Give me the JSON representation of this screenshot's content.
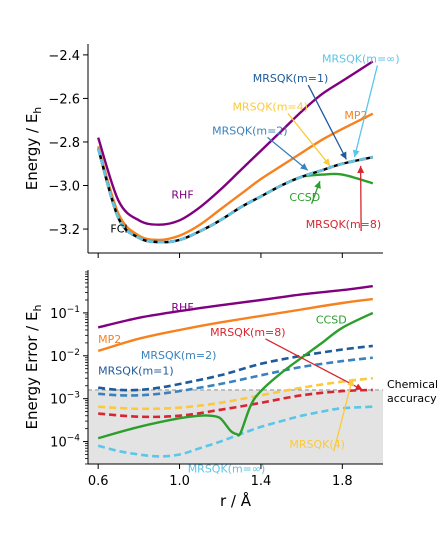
{
  "chart_data": [
    {
      "type": "line",
      "ylabel": "Energy / E_h",
      "ylabel_parts": {
        "main": "Energy / E",
        "sub": "h"
      },
      "xlim": [
        0.55,
        2.0
      ],
      "ylim": [
        -3.31,
        -2.35
      ],
      "xticks": [
        0.6,
        1.0,
        1.4,
        1.8
      ],
      "xtick_labels": [
        "",
        "",
        "",
        ""
      ],
      "yticks": [
        -2.4,
        -2.6,
        -2.8,
        -3.0,
        -3.2
      ],
      "ytick_labels": [
        "−2.4",
        "−2.6",
        "−2.8",
        "−3.0",
        "−3.2"
      ],
      "series": [
        {
          "name": "RHF",
          "color": "#800080",
          "style": "solid",
          "x": [
            0.6,
            0.7,
            0.8,
            0.9,
            1.0,
            1.1,
            1.2,
            1.3,
            1.4,
            1.5,
            1.6,
            1.7,
            1.8,
            1.95
          ],
          "y": [
            -2.78,
            -3.07,
            -3.16,
            -3.18,
            -3.16,
            -3.1,
            -3.02,
            -2.93,
            -2.84,
            -2.75,
            -2.66,
            -2.58,
            -2.52,
            -2.43
          ]
        },
        {
          "name": "MP2",
          "color": "#f7811f",
          "style": "solid",
          "x": [
            0.6,
            0.7,
            0.8,
            0.9,
            1.0,
            1.1,
            1.2,
            1.3,
            1.4,
            1.5,
            1.6,
            1.7,
            1.8,
            1.95
          ],
          "y": [
            -2.82,
            -3.13,
            -3.23,
            -3.25,
            -3.23,
            -3.18,
            -3.11,
            -3.04,
            -2.97,
            -2.91,
            -2.85,
            -2.79,
            -2.74,
            -2.67
          ]
        },
        {
          "name": "CCSD",
          "color": "#2c9e2c",
          "style": "solid",
          "x": [
            0.6,
            0.7,
            0.8,
            0.9,
            1.0,
            1.1,
            1.2,
            1.3,
            1.4,
            1.5,
            1.6,
            1.7,
            1.8,
            1.95
          ],
          "y": [
            -2.83,
            -3.15,
            -3.24,
            -3.26,
            -3.25,
            -3.21,
            -3.16,
            -3.1,
            -3.05,
            -3.0,
            -2.96,
            -2.95,
            -2.95,
            -2.99
          ]
        },
        {
          "name": "FCI",
          "color": "#000000",
          "style": "solid",
          "x": [
            0.6,
            0.7,
            0.8,
            0.9,
            1.0,
            1.1,
            1.2,
            1.3,
            1.4,
            1.5,
            1.6,
            1.7,
            1.8,
            1.95
          ],
          "y": [
            -2.83,
            -3.15,
            -3.24,
            -3.26,
            -3.25,
            -3.21,
            -3.16,
            -3.1,
            -3.05,
            -3.0,
            -2.96,
            -2.93,
            -2.9,
            -2.87
          ]
        },
        {
          "name": "MRSQK(m=1)",
          "color": "#1f5a9a",
          "style": "dashed",
          "x": [
            0.6,
            0.7,
            0.8,
            0.9,
            1.0,
            1.1,
            1.2,
            1.3,
            1.4,
            1.5,
            1.6,
            1.7,
            1.8,
            1.95
          ],
          "y": [
            -2.83,
            -3.15,
            -3.24,
            -3.26,
            -3.25,
            -3.21,
            -3.16,
            -3.1,
            -3.05,
            -3.0,
            -2.96,
            -2.93,
            -2.9,
            -2.87
          ]
        },
        {
          "name": "MRSQK(m=2)",
          "color": "#3a82bd",
          "style": "dashed",
          "x": [
            0.6,
            0.7,
            0.8,
            0.9,
            1.0,
            1.1,
            1.2,
            1.3,
            1.4,
            1.5,
            1.6,
            1.7,
            1.8,
            1.95
          ],
          "y": [
            -2.83,
            -3.15,
            -3.24,
            -3.26,
            -3.25,
            -3.21,
            -3.16,
            -3.1,
            -3.05,
            -3.0,
            -2.96,
            -2.93,
            -2.9,
            -2.87
          ]
        },
        {
          "name": "MRSQK(m=4)",
          "color": "#fcc93a",
          "style": "dashed",
          "x": [
            0.6,
            0.7,
            0.8,
            0.9,
            1.0,
            1.1,
            1.2,
            1.3,
            1.4,
            1.5,
            1.6,
            1.7,
            1.8,
            1.95
          ],
          "y": [
            -2.83,
            -3.15,
            -3.24,
            -3.26,
            -3.25,
            -3.21,
            -3.16,
            -3.1,
            -3.05,
            -3.0,
            -2.96,
            -2.93,
            -2.9,
            -2.87
          ]
        },
        {
          "name": "MRSQK(m=8)",
          "color": "#d7262f",
          "style": "dashed",
          "x": [
            0.6,
            0.7,
            0.8,
            0.9,
            1.0,
            1.1,
            1.2,
            1.3,
            1.4,
            1.5,
            1.6,
            1.7,
            1.8,
            1.95
          ],
          "y": [
            -2.83,
            -3.15,
            -3.24,
            -3.26,
            -3.25,
            -3.21,
            -3.16,
            -3.1,
            -3.05,
            -3.0,
            -2.96,
            -2.93,
            -2.9,
            -2.87
          ]
        },
        {
          "name": "MRSQK(m=∞)",
          "color": "#5bc6e8",
          "style": "dashed",
          "x": [
            0.6,
            0.7,
            0.8,
            0.9,
            1.0,
            1.1,
            1.2,
            1.3,
            1.4,
            1.5,
            1.6,
            1.7,
            1.8,
            1.95
          ],
          "y": [
            -2.83,
            -3.15,
            -3.24,
            -3.26,
            -3.25,
            -3.21,
            -3.16,
            -3.1,
            -3.05,
            -3.0,
            -2.96,
            -2.93,
            -2.9,
            -2.87
          ]
        }
      ],
      "annotations": [
        {
          "text": "MRSQK(m=∞)",
          "color": "#5bc6e8",
          "label_x": 1.7,
          "label_y": -2.435,
          "arrow_to": [
            1.86,
            -2.87
          ]
        },
        {
          "text": "MRSQK(m=1)",
          "color": "#1f5a9a",
          "label_x": 1.36,
          "label_y": -2.525,
          "arrow_to": [
            1.82,
            -2.88
          ]
        },
        {
          "text": "MRSQK(m=4)",
          "color": "#fcc93a",
          "label_x": 1.26,
          "label_y": -2.655,
          "arrow_to": [
            1.74,
            -2.91
          ]
        },
        {
          "text": "MP2",
          "color": "#f7811f",
          "label_x": 1.81,
          "label_y": -2.695,
          "arrow_to": null
        },
        {
          "text": "MRSQK(m=2)",
          "color": "#3a82bd",
          "label_x": 1.16,
          "label_y": -2.765,
          "arrow_to": [
            1.63,
            -2.93
          ]
        },
        {
          "text": "RHF",
          "color": "#800080",
          "label_x": 0.96,
          "label_y": -3.06,
          "arrow_to": null
        },
        {
          "text": "CCSD",
          "color": "#2c9e2c",
          "label_x": 1.54,
          "label_y": -3.07,
          "arrow_to": [
            1.69,
            -2.98
          ]
        },
        {
          "text": "MRSQK(m=8)",
          "color": "#d7262f",
          "label_x": 1.62,
          "label_y": -3.195,
          "arrow_to": [
            1.89,
            -2.91
          ]
        },
        {
          "text": "FCI",
          "color": "#000000",
          "label_x": 0.66,
          "label_y": -3.215,
          "arrow_to": null
        }
      ]
    },
    {
      "type": "line",
      "ylabel": "Energy Error / E_h",
      "ylabel_parts": {
        "main": "Energy Error / E",
        "sub": "h"
      },
      "xlabel": "r / Å",
      "yscale": "log",
      "xlim": [
        0.55,
        2.0
      ],
      "ylim": [
        3e-05,
        1.0
      ],
      "xticks": [
        0.6,
        1.0,
        1.4,
        1.8
      ],
      "xtick_labels": [
        "0.6",
        "1.0",
        "1.4",
        "1.8"
      ],
      "yticks": [
        0.1,
        0.01,
        0.001,
        0.0001
      ],
      "ytick_labels": [
        {
          "base": "10",
          "exp": "−1"
        },
        {
          "base": "10",
          "exp": "−2"
        },
        {
          "base": "10",
          "exp": "−3"
        },
        {
          "base": "10",
          "exp": "−4"
        }
      ],
      "chemical_accuracy": 0.0016,
      "chemical_accuracy_label": [
        "Chemical",
        "accuracy"
      ],
      "series": [
        {
          "name": "RHF",
          "color": "#800080",
          "style": "solid",
          "x": [
            0.6,
            0.8,
            1.0,
            1.2,
            1.4,
            1.6,
            1.8,
            1.95
          ],
          "y": [
            0.046,
            0.077,
            0.11,
            0.15,
            0.2,
            0.27,
            0.34,
            0.42
          ]
        },
        {
          "name": "MP2",
          "color": "#f7811f",
          "style": "solid",
          "x": [
            0.6,
            0.8,
            1.0,
            1.2,
            1.4,
            1.6,
            1.8,
            1.95
          ],
          "y": [
            0.013,
            0.025,
            0.04,
            0.06,
            0.085,
            0.12,
            0.17,
            0.21
          ]
        },
        {
          "name": "MRSQK(m=1)",
          "color": "#1f5a9a",
          "style": "dashed",
          "x": [
            0.6,
            0.7,
            0.8,
            0.9,
            1.0,
            1.2,
            1.4,
            1.6,
            1.8,
            1.95
          ],
          "y": [
            0.0018,
            0.0016,
            0.0016,
            0.0018,
            0.0022,
            0.0035,
            0.0065,
            0.01,
            0.014,
            0.017
          ]
        },
        {
          "name": "MRSQK(m=2)",
          "color": "#3a82bd",
          "style": "dashed",
          "x": [
            0.6,
            0.7,
            0.8,
            0.9,
            1.0,
            1.2,
            1.4,
            1.6,
            1.8,
            1.95
          ],
          "y": [
            0.0013,
            0.0012,
            0.0012,
            0.0013,
            0.0015,
            0.0022,
            0.0035,
            0.0055,
            0.0075,
            0.009
          ]
        },
        {
          "name": "MRSQK(m=4)",
          "color": "#fcc93a",
          "style": "dashed",
          "x": [
            0.6,
            0.8,
            1.0,
            1.2,
            1.4,
            1.6,
            1.8,
            1.95
          ],
          "y": [
            0.00065,
            0.00058,
            0.00062,
            0.0008,
            0.0012,
            0.0018,
            0.0025,
            0.003
          ]
        },
        {
          "name": "MRSQK(m=8)",
          "color": "#d7262f",
          "style": "dashed",
          "x": [
            0.6,
            0.8,
            1.0,
            1.2,
            1.4,
            1.6,
            1.8,
            1.95
          ],
          "y": [
            0.00045,
            0.00038,
            0.0004,
            0.00055,
            0.0008,
            0.0012,
            0.0015,
            0.0016
          ]
        },
        {
          "name": "MRSQK(m=∞)",
          "color": "#5bc6e8",
          "style": "dashed",
          "x": [
            0.6,
            0.7,
            0.8,
            0.9,
            1.0,
            1.1,
            1.2,
            1.3,
            1.4,
            1.5,
            1.6,
            1.7,
            1.8,
            1.95
          ],
          "y": [
            8e-05,
            6e-05,
            5e-05,
            4.5e-05,
            5e-05,
            7e-05,
            0.0001,
            0.00015,
            0.00022,
            0.0003,
            0.0004,
            0.0005,
            0.0006,
            0.00065
          ]
        },
        {
          "name": "CCSD",
          "color": "#2c9e2c",
          "style": "solid",
          "x": [
            0.6,
            0.8,
            1.0,
            1.1,
            1.15,
            1.2,
            1.25,
            1.28,
            1.3,
            1.35,
            1.4,
            1.5,
            1.6,
            1.7,
            1.8,
            1.95
          ],
          "y": [
            0.00012,
            0.00022,
            0.00035,
            0.0004,
            0.0004,
            0.00035,
            0.00018,
            0.00015,
            0.00016,
            0.0007,
            0.0015,
            0.004,
            0.009,
            0.02,
            0.045,
            0.1
          ]
        }
      ],
      "annotations": [
        {
          "text": "RHF",
          "color": "#800080",
          "label_x": 0.96,
          "label_y": 0.11,
          "arrow_to": null
        },
        {
          "text": "CCSD",
          "color": "#2c9e2c",
          "label_x": 1.67,
          "label_y": 0.057,
          "arrow_to": null
        },
        {
          "text": "MP2",
          "color": "#f7811f",
          "label_x": 0.6,
          "label_y": 0.02,
          "arrow_to": null
        },
        {
          "text": "MRSQK(m=8)",
          "color": "#d7262f",
          "label_x": 1.15,
          "label_y": 0.029,
          "arrow_to": [
            1.9,
            0.0016
          ]
        },
        {
          "text": "MRSQK(m=2)",
          "color": "#3a82bd",
          "label_x": 0.81,
          "label_y": 0.0085,
          "arrow_to": null
        },
        {
          "text": "MRSQK(m=1)",
          "color": "#1f5a9a",
          "label_x": 0.6,
          "label_y": 0.0037,
          "arrow_to": null
        },
        {
          "text": "MRSQK(4)",
          "color": "#fcc93a",
          "label_x": 1.54,
          "label_y": 7e-05,
          "arrow_to": [
            1.85,
            0.0029
          ]
        },
        {
          "text": "MRSQK(m=∞)",
          "color": "#5bc6e8",
          "label_x": 1.04,
          "label_y": 1.9e-05,
          "arrow_to": null
        }
      ]
    }
  ]
}
